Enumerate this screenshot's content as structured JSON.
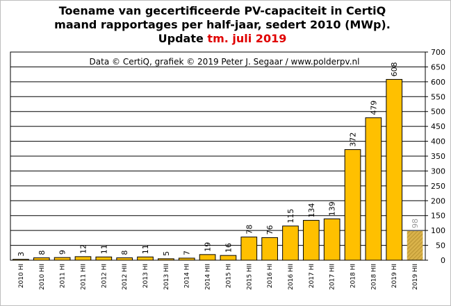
{
  "title": {
    "line1": "Toename van gecertificeerde PV-capaciteit in CertiQ",
    "line2": "maand rapportages per half-jaar, sedert 2010 (MWp).",
    "line3_prefix": "Update ",
    "line3_highlight": "tm. juli 2019"
  },
  "credit": "Data © CertiQ, grafiek © 2019 Peter J. Segaar / www.polderpv.nl",
  "colors": {
    "bar": "#ffc000",
    "bar_stroke": "#000000",
    "partial_bar": "#d9b24a",
    "highlight": "#e00000",
    "grid": "#000000"
  },
  "chart_data": {
    "type": "bar",
    "title": "Toename van gecertificeerde PV-capaciteit in CertiQ maand rapportages per half-jaar, sedert 2010 (MWp).",
    "categories": [
      "2010 HI",
      "2010 HII",
      "2011 HI",
      "2011 HII",
      "2012 HI",
      "2012 HII",
      "2013 HI",
      "2013 HII",
      "2014 HI",
      "2014 HII",
      "2015 HI",
      "2015 HII",
      "2016 HI",
      "2016 HII",
      "2017 HI",
      "2017 HII",
      "2018 HI",
      "2018 HII",
      "2019 HI",
      "2019 HII"
    ],
    "values": [
      3,
      8,
      9,
      12,
      11,
      8,
      11,
      5,
      7,
      19,
      16,
      78,
      76,
      115,
      134,
      139,
      372,
      479,
      608,
      98
    ],
    "data_labels": [
      "3",
      "8",
      "9",
      "12",
      "11",
      "8",
      "11",
      "5",
      "7",
      "19",
      "16",
      "78",
      "76",
      "115",
      "134",
      "139",
      "372",
      "479",
      "608",
      "98"
    ],
    "partial_last": true,
    "yticks": [
      0,
      50,
      100,
      150,
      200,
      250,
      300,
      350,
      400,
      450,
      500,
      550,
      600,
      650,
      700
    ],
    "ylim": [
      0,
      700
    ],
    "y_axis_side": "right",
    "grid": "horizontal"
  }
}
